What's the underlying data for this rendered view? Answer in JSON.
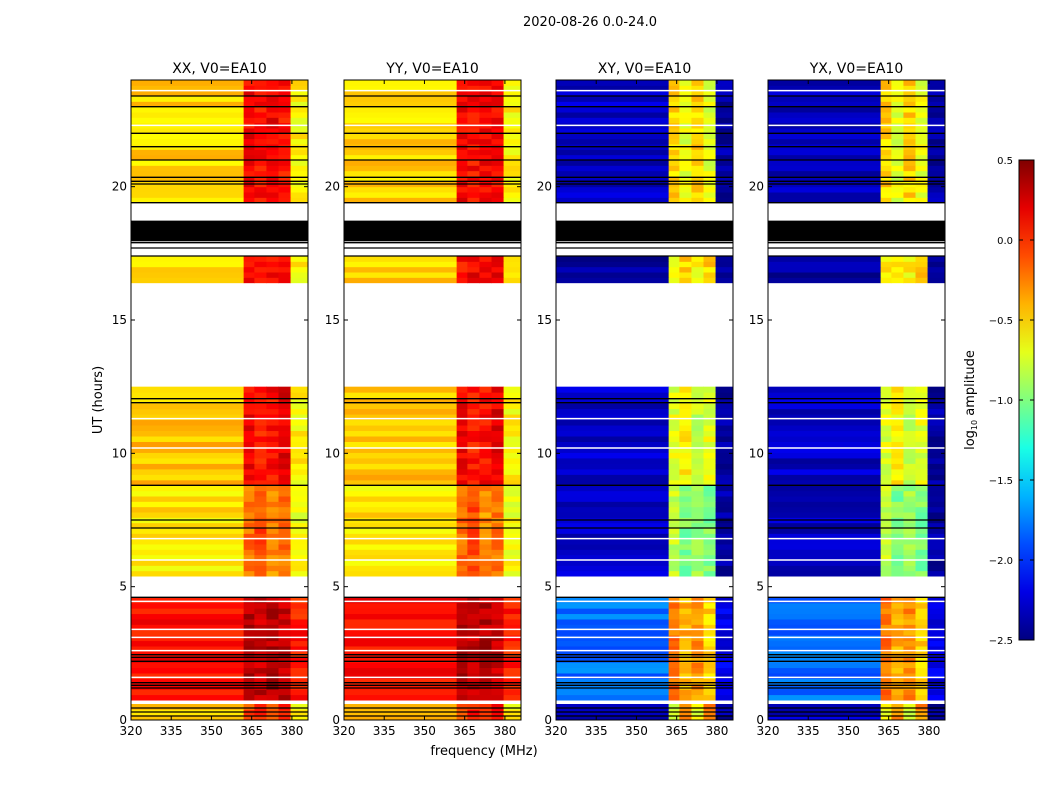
{
  "chart_data": {
    "type": "heatmap",
    "title": "2020-08-26 0.0-24.0",
    "xlabel": "frequency (MHz)",
    "ylabel": "UT (hours)",
    "xlim": [
      320,
      386
    ],
    "ylim": [
      0,
      24
    ],
    "xticks": [
      "320",
      "335",
      "350",
      "365",
      "380"
    ],
    "xtick_values": [
      320,
      335,
      350,
      365,
      380
    ],
    "yticks": [
      "0",
      "5",
      "10",
      "15",
      "20"
    ],
    "ytick_values": [
      0,
      5,
      10,
      15,
      20
    ],
    "colorbar": {
      "label_main": "log",
      "label_sub": "10",
      "label_rest": " amplitude",
      "colormap": "jet",
      "range": [
        -2.5,
        0.5
      ],
      "ticks": [
        "0.5",
        "0.0",
        "−0.5",
        "−1.0",
        "−1.5",
        "−2.0",
        "−2.5"
      ],
      "tick_values": [
        0.5,
        0.0,
        -0.5,
        -1.0,
        -1.5,
        -2.0,
        -2.5
      ]
    },
    "panels": [
      {
        "title": "XX, V0=EA10",
        "kind": "parallel"
      },
      {
        "title": "YY, V0=EA10",
        "kind": "parallel"
      },
      {
        "title": "XY, V0=EA10",
        "kind": "cross"
      },
      {
        "title": "YX, V0=EA10",
        "kind": "cross"
      }
    ],
    "freq_segments_mhz": [
      [
        320,
        362
      ],
      [
        362,
        365.5
      ],
      [
        366,
        370
      ],
      [
        370.5,
        374.5
      ],
      [
        375,
        379
      ],
      [
        379.5,
        386
      ]
    ],
    "time_bands": [
      {
        "t": [
          0.0,
          0.6
        ],
        "parallel": [
          -0.45,
          -0.1,
          0.05,
          -0.1,
          0.05,
          -0.6
        ],
        "cross": [
          -2.3,
          -0.7,
          -0.3,
          -0.7,
          -0.3,
          -2.4
        ]
      },
      {
        "t": [
          0.75,
          4.6
        ],
        "parallel": [
          0.1,
          0.35,
          0.3,
          0.35,
          0.3,
          0.05
        ],
        "cross": [
          -1.8,
          -0.2,
          -0.4,
          -0.3,
          -0.5,
          -2.2
        ]
      },
      {
        "t": [
          5.4,
          8.8
        ],
        "parallel": [
          -0.55,
          -0.2,
          -0.1,
          -0.3,
          -0.2,
          -0.65
        ],
        "cross": [
          -2.3,
          -0.8,
          -1.0,
          -0.9,
          -1.0,
          -2.4
        ]
      },
      {
        "t": [
          8.8,
          12.5
        ],
        "parallel": [
          -0.45,
          0.15,
          0.05,
          0.1,
          0.2,
          -0.6
        ],
        "cross": [
          -2.3,
          -0.7,
          -0.6,
          -0.8,
          -0.7,
          -2.4
        ]
      },
      {
        "t": [
          16.4,
          17.4
        ],
        "parallel": [
          -0.5,
          0.1,
          0.15,
          0.1,
          0.15,
          -0.6
        ],
        "cross": [
          -2.4,
          -0.6,
          -0.5,
          -0.6,
          -0.5,
          -2.4
        ]
      },
      {
        "t": [
          19.4,
          24.0
        ],
        "parallel": [
          -0.5,
          0.15,
          0.1,
          0.15,
          0.1,
          -0.6
        ],
        "cross": [
          -2.3,
          -0.5,
          -0.7,
          -0.5,
          -0.7,
          -2.4
        ]
      }
    ],
    "flagged_black_hours": [
      0.15,
      0.3,
      0.45,
      1.2,
      1.3,
      1.4,
      2.2,
      2.35,
      2.45,
      4.6,
      7.2,
      7.5,
      8.8,
      11.9,
      12.05,
      17.4,
      17.7,
      17.9,
      18.1,
      18.3,
      18.5,
      18.7,
      19.4,
      20.1,
      20.2,
      20.35,
      21.0,
      21.5,
      22.0,
      23.0,
      23.4
    ],
    "flagged_black_blocks": [
      [
        17.95,
        18.7
      ]
    ],
    "blank_white_hours": [
      1.6,
      2.6,
      3.1,
      3.4,
      4.45,
      6.0,
      6.8,
      10.2,
      11.3,
      19.0,
      22.3,
      23.6
    ]
  }
}
